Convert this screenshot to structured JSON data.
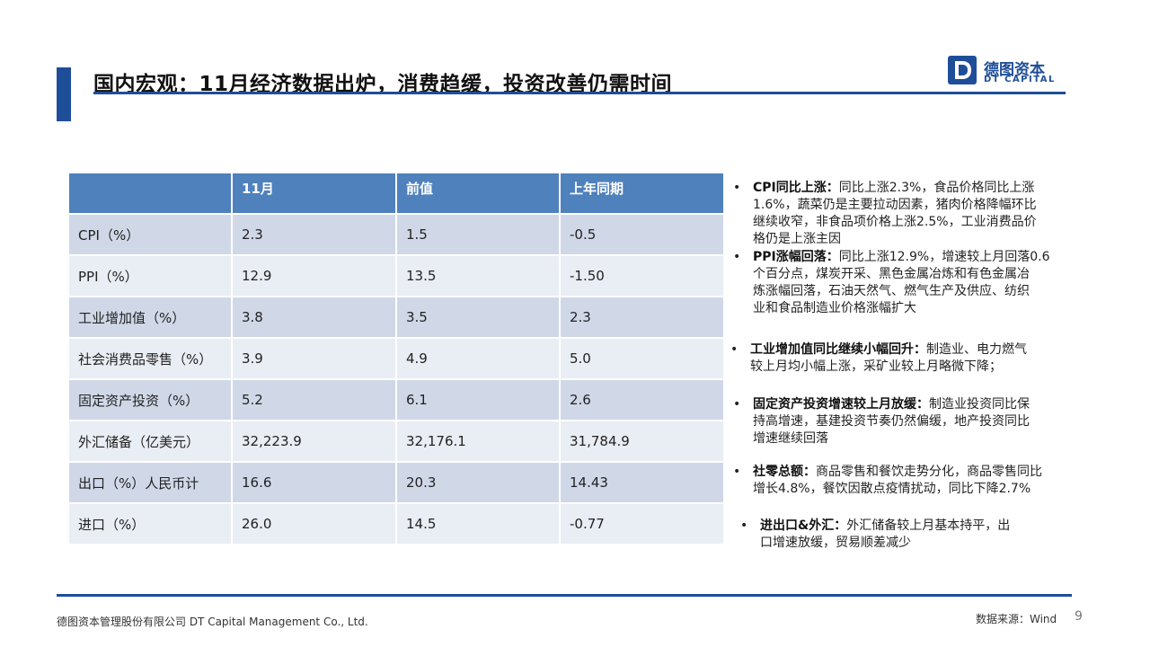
{
  "header": {
    "title": "国内宏观：11月经济数据出炉，消费趋缓，投资改善仍需时间"
  },
  "logo": {
    "letter": "D",
    "name_cn": "德图资本",
    "name_en": "DT CAPITAL"
  },
  "table": {
    "columns": [
      "",
      "11月",
      "前值",
      "上年同期"
    ],
    "rows": [
      {
        "label": "CPI（%）",
        "current": "2.3",
        "previous": "1.5",
        "last_year": "-0.5"
      },
      {
        "label": "PPI（%）",
        "current": "12.9",
        "previous": "13.5",
        "last_year": "-1.50"
      },
      {
        "label": "工业增加值（%）",
        "current": "3.8",
        "previous": "3.5",
        "last_year": "2.3"
      },
      {
        "label": "社会消费品零售（%）",
        "current": "3.9",
        "previous": "4.9",
        "last_year": "5.0"
      },
      {
        "label": "固定资产投资（%）",
        "current": "5.2",
        "previous": "6.1",
        "last_year": "2.6"
      },
      {
        "label": "外汇储备（亿美元）",
        "current": "32,223.9",
        "previous": "32,176.1",
        "last_year": "31,784.9"
      },
      {
        "label": "出口（%）人民币计",
        "current": "16.6",
        "previous": "20.3",
        "last_year": "14.43"
      },
      {
        "label": "进口（%）",
        "current": "26.0",
        "previous": "14.5",
        "last_year": "-0.77"
      }
    ]
  },
  "bullets": [
    {
      "dot": "•",
      "head": "CPI同比上涨：",
      "lines": [
        "同比上涨2.3%，食品价格同比上涨",
        "1.6%，蔬菜仍是主要拉动因素，猪肉价格降幅环比",
        "继续收窄，非食品项价格上涨2.5%，工业消费品价",
        "格仍是上涨主因"
      ]
    },
    {
      "dot": "•",
      "head": "PPI涨幅回落：",
      "lines": [
        "同比上涨12.9%，增速较上月回落0.6",
        "个百分点，煤炭开采、黑色金属冶炼和有色金属冶",
        "炼涨幅回落，石油天然气、燃气生产及供应、纺织",
        "业和食品制造业价格涨幅扩大"
      ]
    },
    {
      "dot": "•",
      "head": "工业增加值同比继续小幅回升：",
      "lines": [
        "制造业、电力燃气",
        "较上月均小幅上涨，采矿业较上月略微下降；"
      ]
    },
    {
      "dot": "•",
      "head": "固定资产投资增速较上月放缓：",
      "lines": [
        "制造业投资同比保",
        "持高增速，基建投资节奏仍然偏缓，地产投资同比",
        "增速继续回落"
      ]
    },
    {
      "dot": "•",
      "head": "社零总额：",
      "lines": [
        "商品零售和餐饮走势分化，商品零售同比",
        "增长4.8%，餐饮因散点疫情扰动，同比下降2.7%"
      ]
    },
    {
      "dot": "•",
      "head": "进出口&外汇：",
      "lines": [
        "外汇储备较上月基本持平，出",
        "口增速放缓，贸易顺差减少"
      ]
    }
  ],
  "footer": {
    "company": "德图资本管理股份有限公司  DT Capital Management  Co., Ltd.",
    "source": "数据来源：Wind",
    "page": "9"
  },
  "colors": {
    "brand": "#1f4e99",
    "table_header": "#4f81bd",
    "row_dark": "#d0d8e8",
    "row_light": "#e9edf4"
  }
}
